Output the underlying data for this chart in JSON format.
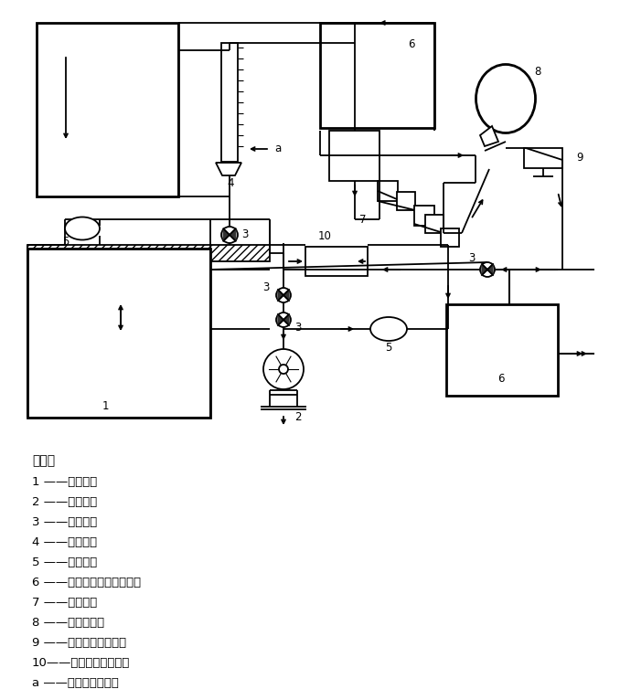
{
  "legend": [
    [
      "说明：",
      ""
    ],
    [
      "1",
      "——呼吸机；"
    ],
    [
      "2",
      "——辅助泵；"
    ],
    [
      "3",
      "——单向阀；"
    ],
    [
      "4",
      "——流量计；"
    ],
    [
      "5",
      "——补偿袋；"
    ],
    [
      "6",
      "——二氧化碳气体分析仪；"
    ],
    [
      "7",
      "——电磁阀；"
    ],
    [
      "8",
      "——试验头模；"
    ],
    [
      "9",
      "——吸入气体取样管；"
    ],
    [
      "10",
      "——二氧化碳吸收器；"
    ],
    [
      "a",
      "——二氧化碳气体。"
    ]
  ],
  "lc": "#000000",
  "bg": "#ffffff",
  "diagram_scale": 1.0
}
